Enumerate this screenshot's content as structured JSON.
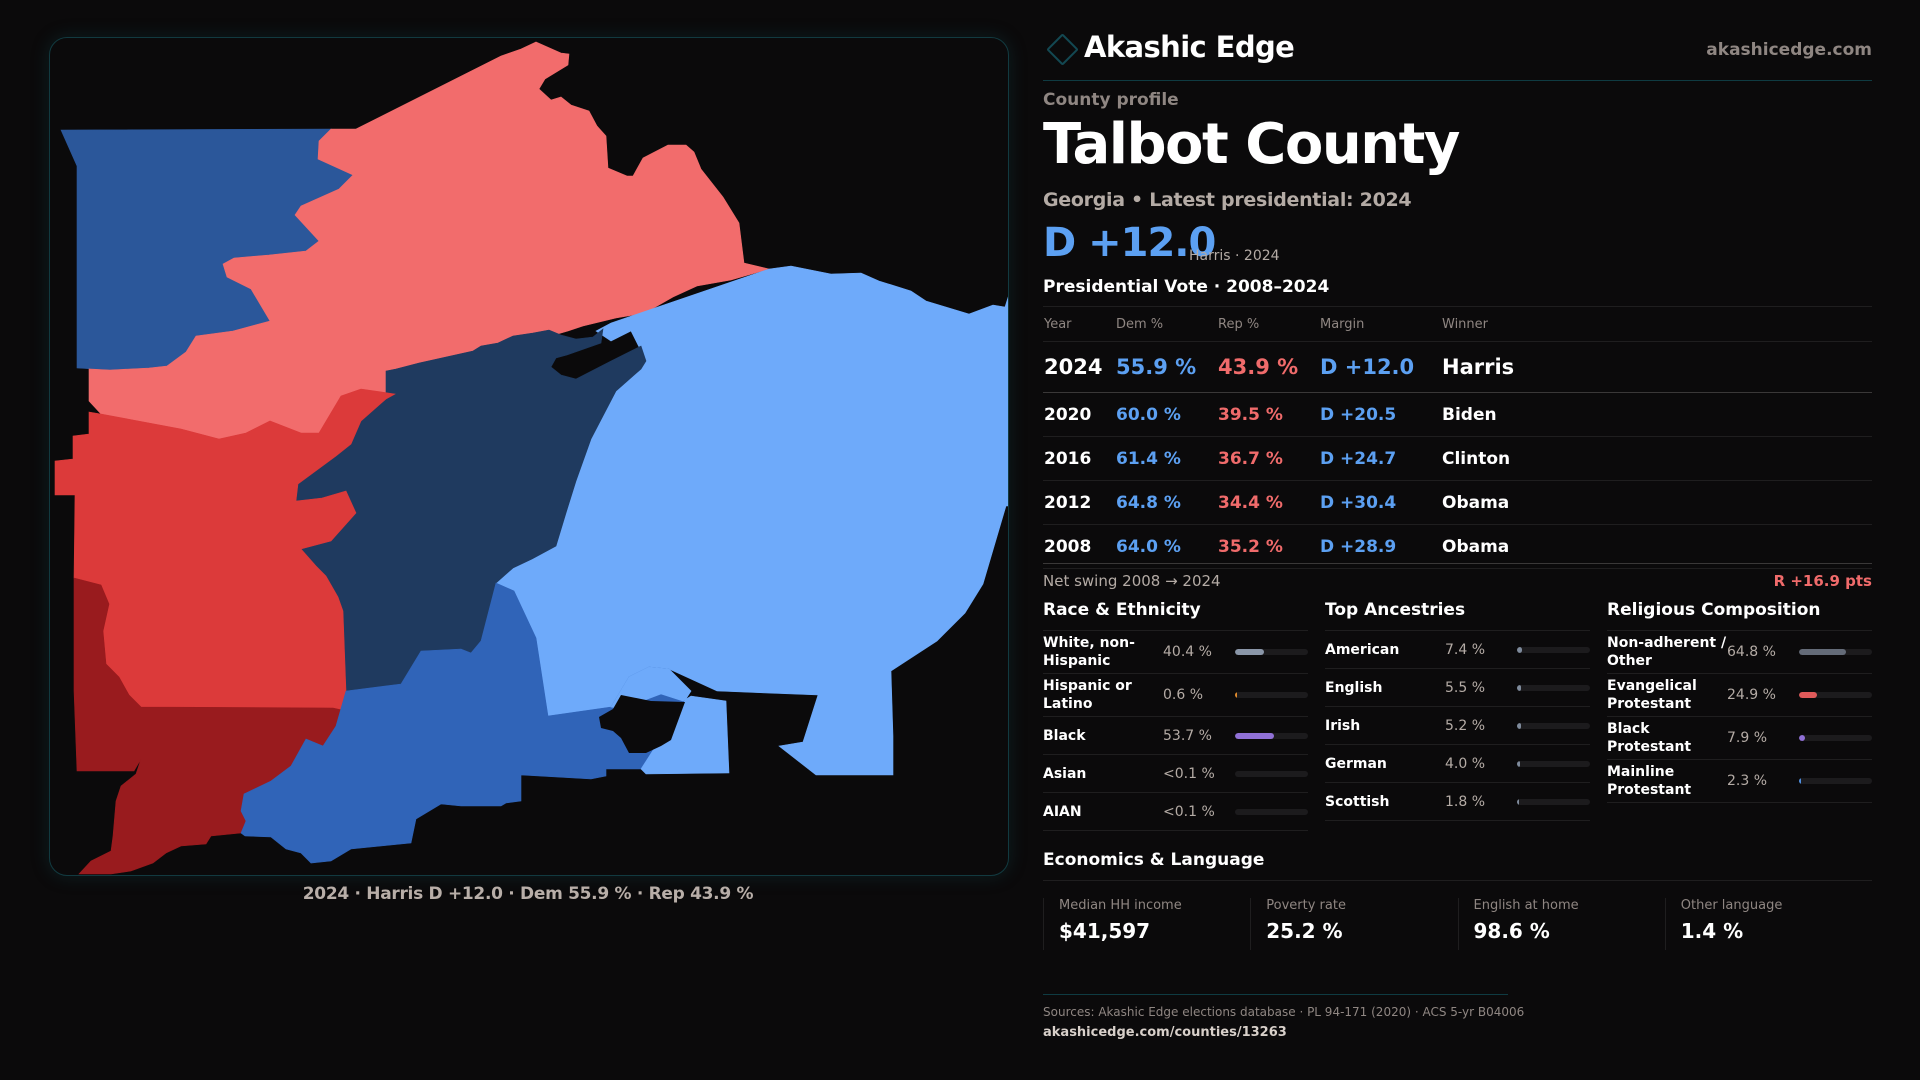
{
  "brand": {
    "name": "Akashic Edge",
    "site": "akashicedge.com",
    "logo_icon": "diamond-icon"
  },
  "profile": {
    "eyebrow": "County profile",
    "title": "Talbot County",
    "subtitle": "Georgia • Latest presidential: 2024",
    "margin": "D +12.0",
    "margin_note": "Harris · 2024"
  },
  "colors": {
    "dem": "#5ca0f2",
    "rep": "#f06b6b",
    "accent": "#134852"
  },
  "votes": {
    "title": "Presidential Vote · 2008–2024",
    "headers": [
      "Year",
      "Dem %",
      "Rep %",
      "Margin",
      "Winner"
    ],
    "rows": [
      {
        "year": "2024",
        "dem": "55.9 %",
        "rep": "43.9 %",
        "margin": "D +12.0",
        "winner": "Harris"
      },
      {
        "year": "2020",
        "dem": "60.0 %",
        "rep": "39.5 %",
        "margin": "D +20.5",
        "winner": "Biden"
      },
      {
        "year": "2016",
        "dem": "61.4 %",
        "rep": "36.7 %",
        "margin": "D +24.7",
        "winner": "Clinton"
      },
      {
        "year": "2012",
        "dem": "64.8 %",
        "rep": "34.4 %",
        "margin": "D +30.4",
        "winner": "Obama"
      },
      {
        "year": "2008",
        "dem": "64.0 %",
        "rep": "35.2 %",
        "margin": "D +28.9",
        "winner": "Obama"
      }
    ],
    "swing_label": "Net swing 2008 → 2024",
    "swing_value": "R +16.9 pts"
  },
  "race": {
    "title": "Race & Ethnicity",
    "items": [
      {
        "label": "White, non-Hispanic",
        "pct": "40.4 %",
        "value": 40.4,
        "color": "#8a96a8"
      },
      {
        "label": "Hispanic or Latino",
        "pct": "0.6 %",
        "value": 0.6,
        "color": "#e08a2c"
      },
      {
        "label": "Black",
        "pct": "53.7 %",
        "value": 53.7,
        "color": "#9070d6"
      },
      {
        "label": "Asian",
        "pct": "<0.1 %",
        "value": 0,
        "color": "#5ca0f2"
      },
      {
        "label": "AIAN",
        "pct": "<0.1 %",
        "value": 0,
        "color": "#5ca0f2"
      }
    ]
  },
  "ancestry": {
    "title": "Top Ancestries",
    "items": [
      {
        "label": "American",
        "pct": "7.4 %",
        "value": 7.4,
        "color": "#7f8b9c"
      },
      {
        "label": "English",
        "pct": "5.5 %",
        "value": 5.5,
        "color": "#7f8b9c"
      },
      {
        "label": "Irish",
        "pct": "5.2 %",
        "value": 5.2,
        "color": "#7f8b9c"
      },
      {
        "label": "German",
        "pct": "4.0 %",
        "value": 4.0,
        "color": "#7f8b9c"
      },
      {
        "label": "Scottish",
        "pct": "1.8 %",
        "value": 1.8,
        "color": "#7f8b9c"
      }
    ]
  },
  "religion": {
    "title": "Religious Composition",
    "items": [
      {
        "label": "Non-adherent / Other",
        "pct": "64.8 %",
        "value": 64.8,
        "color": "#646b78"
      },
      {
        "label": "Evangelical Protestant",
        "pct": "24.9 %",
        "value": 24.9,
        "color": "#e05a5a"
      },
      {
        "label": "Black Protestant",
        "pct": "7.9 %",
        "value": 7.9,
        "color": "#9070d6"
      },
      {
        "label": "Mainline Protestant",
        "pct": "2.3 %",
        "value": 2.3,
        "color": "#4f8fe0"
      }
    ]
  },
  "economics": {
    "title": "Economics & Language",
    "items": [
      {
        "label": "Median HH income",
        "value": "$41,597"
      },
      {
        "label": "Poverty rate",
        "value": "25.2 %"
      },
      {
        "label": "English at home",
        "value": "98.6 %"
      },
      {
        "label": "Other language",
        "value": "1.4 %"
      }
    ]
  },
  "map": {
    "caption": "2024 · Harris D +12.0 · Dem 55.9 % · Rep 43.9 %",
    "precinct_colors": {
      "strong_dem": "#1f3a5f",
      "dem": "#2b579a",
      "mid_dem": "#3064b8",
      "lean_dem": "#6eaafa",
      "lean_rep": "#f26c6c",
      "rep": "#dc3a3a",
      "strong_rep": "#991b1e"
    }
  },
  "sources": {
    "text": "Sources: Akashic Edge elections database · PL 94-171 (2020) · ACS 5-yr B04006",
    "url": "akashicedge.com/counties/13263"
  }
}
